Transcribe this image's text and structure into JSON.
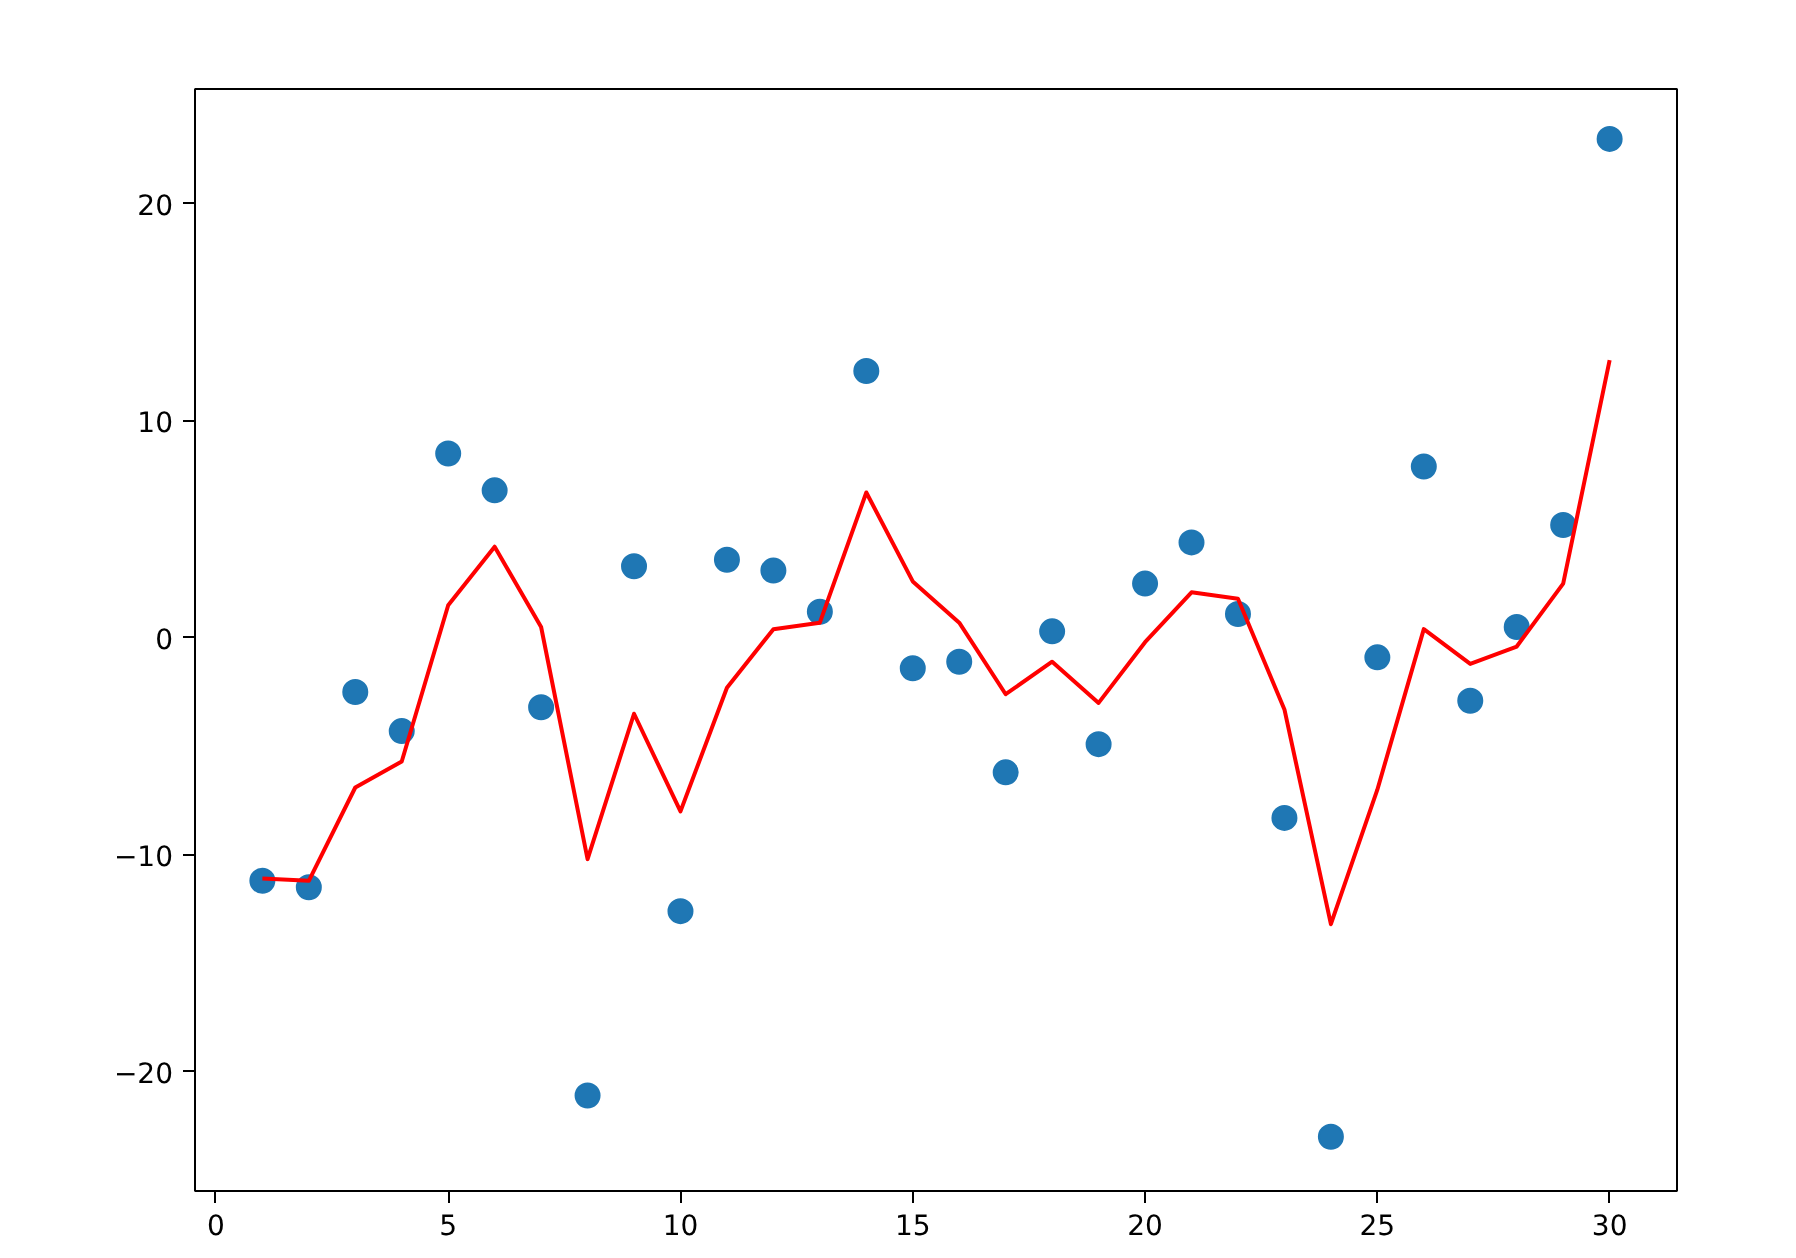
{
  "chart_data": {
    "type": "scatter",
    "x": [
      1,
      2,
      3,
      4,
      5,
      6,
      7,
      8,
      9,
      10,
      11,
      12,
      13,
      14,
      15,
      16,
      17,
      18,
      19,
      20,
      21,
      22,
      23,
      24,
      25,
      26,
      27,
      28,
      29,
      30
    ],
    "series": [
      {
        "color": "#1f77b4",
        "marker": "circle",
        "values": [
          -11.2,
          -11.5,
          -2.5,
          -4.3,
          8.5,
          6.8,
          -3.2,
          -21.1,
          3.3,
          -12.6,
          3.6,
          3.1,
          1.2,
          12.3,
          -1.4,
          -1.1,
          -6.2,
          0.3,
          -4.9,
          2.5,
          4.4,
          1.1,
          -8.3,
          -23.0,
          -0.9,
          7.9,
          -2.9,
          0.5,
          5.2,
          23.0
        ]
      },
      {
        "type": "line",
        "color": "#ff0000",
        "line_style": "solid",
        "values": [
          -11.1,
          -11.2,
          -6.9,
          -5.7,
          1.5,
          4.2,
          0.5,
          -10.2,
          -3.5,
          -8.0,
          -2.3,
          0.4,
          0.7,
          6.7,
          2.6,
          0.7,
          -2.6,
          -1.1,
          -3.0,
          -0.2,
          2.1,
          1.8,
          -3.3,
          -13.2,
          -7.0,
          0.4,
          -1.2,
          -0.4,
          2.5,
          12.8
        ]
      }
    ],
    "xlim": [
      -0.45,
      31.45
    ],
    "ylim": [
      -25.5,
      25.3
    ],
    "xticks": [
      0,
      5,
      10,
      15,
      20,
      25,
      30
    ],
    "yticks": [
      -20,
      -10,
      0,
      10,
      20
    ],
    "grid": false
  }
}
